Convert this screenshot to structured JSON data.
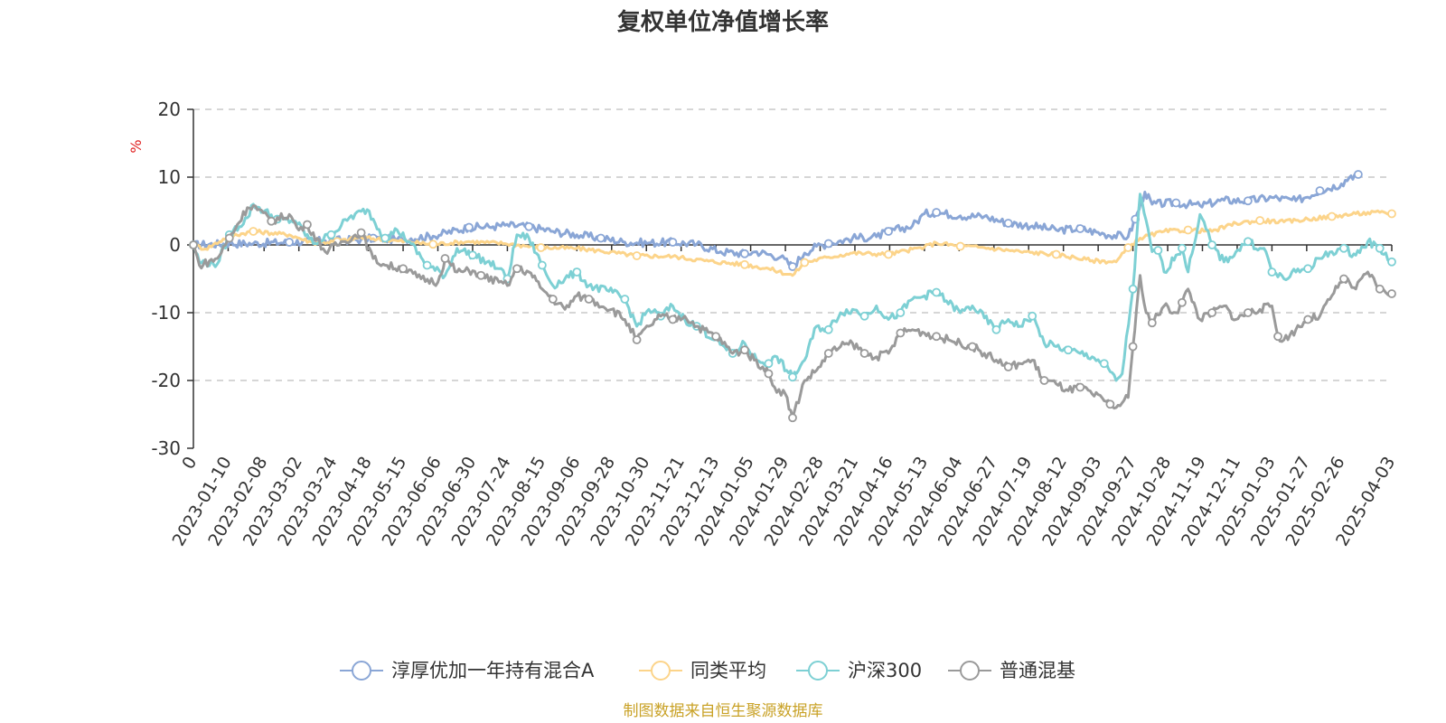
{
  "chart_data": {
    "type": "line",
    "title": "复权单位净值增长率",
    "ylabel": "%",
    "ylim": [
      -30,
      20
    ],
    "yticks": [
      20,
      10,
      0,
      -10,
      -20,
      -30
    ],
    "grid": true,
    "legend_position": "bottom",
    "x_range": [
      0,
      100
    ],
    "categories": [
      "0",
      "2023-01-10",
      "2023-02-08",
      "2023-03-02",
      "2023-03-24",
      "2023-04-18",
      "2023-05-15",
      "2023-06-06",
      "2023-06-30",
      "2023-07-24",
      "2023-08-15",
      "2023-09-06",
      "2023-09-28",
      "2023-10-30",
      "2023-11-21",
      "2023-12-13",
      "2024-01-05",
      "2024-01-29",
      "2024-02-28",
      "2024-03-21",
      "2024-04-16",
      "2024-05-13",
      "2024-06-04",
      "2024-06-27",
      "2024-07-19",
      "2024-08-12",
      "2024-09-03",
      "2024-09-27",
      "2024-10-28",
      "2024-11-19",
      "2024-12-11",
      "2025-01-03",
      "2025-01-27",
      "2025-02-26",
      "2025-04-03"
    ],
    "category_positions": [
      0,
      2.9,
      5.9,
      8.8,
      11.7,
      14.6,
      17.5,
      20.4,
      23.3,
      26.2,
      29.1,
      32.0,
      34.9,
      37.8,
      40.7,
      43.6,
      46.5,
      49.4,
      52.3,
      55.2,
      58.1,
      61.0,
      63.9,
      66.8,
      69.7,
      72.6,
      75.5,
      78.4,
      81.3,
      84.2,
      87.1,
      90.0,
      92.9,
      95.8,
      100
    ],
    "series": [
      {
        "name": "淳厚优加一年持有混合A",
        "color": "#8aa6d6",
        "x": [
          0,
          3,
          5,
          8,
          11,
          14,
          15,
          17,
          20,
          23,
          25,
          26,
          28,
          30,
          32,
          34,
          36,
          38,
          40,
          42,
          44,
          46,
          47,
          49,
          50,
          51,
          52,
          53,
          55,
          57,
          58,
          60,
          61,
          62,
          64,
          66,
          68,
          70,
          72,
          74,
          76,
          78,
          78.6,
          79.4,
          80,
          82,
          84,
          86,
          88,
          90,
          92,
          94,
          95.8,
          96.6,
          97.2
        ],
        "values": [
          0,
          0.2,
          0.2,
          0.4,
          0.6,
          0.8,
          1.0,
          0.8,
          1.3,
          2.6,
          2.7,
          2.9,
          2.7,
          2.0,
          1.5,
          1.0,
          0.4,
          0.3,
          0.4,
          0.1,
          -1.0,
          -1.3,
          -1.0,
          -1.8,
          -3.2,
          -1.2,
          -0.2,
          0.2,
          1.0,
          1.2,
          2.0,
          2.8,
          4.6,
          4.8,
          4.3,
          4.2,
          3.2,
          2.8,
          2.2,
          2.4,
          1.6,
          1.2,
          3.8,
          7.8,
          6.0,
          6.2,
          5.8,
          6.6,
          6.5,
          7.0,
          6.5,
          8.0,
          9.0,
          10.2,
          10.4
        ]
      },
      {
        "name": "同类平均",
        "color": "#fcd48a",
        "x": [
          0,
          1,
          3,
          5,
          8,
          10,
          12,
          14,
          17,
          20,
          23,
          26,
          29,
          32,
          34,
          37,
          40,
          43,
          46,
          48,
          50,
          51,
          53,
          55,
          58,
          61,
          62,
          64,
          66,
          69,
          72,
          75,
          77,
          78,
          79,
          81,
          83,
          85,
          87,
          89,
          91,
          93,
          95,
          97,
          99,
          100
        ],
        "values": [
          0,
          -0.6,
          1.3,
          2.0,
          1.5,
          0.3,
          0.5,
          1.1,
          0.6,
          0.1,
          0.5,
          0.2,
          -0.4,
          -0.5,
          -0.9,
          -1.6,
          -1.7,
          -2.4,
          -2.9,
          -3.5,
          -4.5,
          -2.6,
          -1.8,
          -1.2,
          -1.4,
          -0.3,
          0.3,
          -0.2,
          -0.4,
          -1.0,
          -1.4,
          -2.3,
          -2.5,
          -0.4,
          1.0,
          2.0,
          2.2,
          2.0,
          3.2,
          3.6,
          3.4,
          3.8,
          4.2,
          4.6,
          4.8,
          4.6
        ]
      },
      {
        "name": "沪深300",
        "color": "#7dd0d4",
        "x": [
          0,
          0.5,
          2,
          3,
          4.5,
          5,
          7,
          8.5,
          10,
          11.5,
          13,
          14.5,
          16,
          17,
          18,
          19.5,
          21,
          22,
          23.3,
          24.5,
          25.5,
          26.2,
          27,
          28,
          29.1,
          30,
          31,
          32,
          33,
          35,
          36,
          37,
          38,
          39,
          40,
          41,
          42,
          43.6,
          44.5,
          45,
          46,
          47,
          48,
          48.7,
          49.5,
          50,
          51,
          52,
          53,
          54,
          55,
          56,
          57,
          58,
          59,
          60,
          61,
          62,
          64,
          65,
          67,
          68,
          69,
          70,
          71,
          72,
          73,
          74,
          75,
          76,
          77,
          77.5,
          78.4,
          79,
          80,
          80.5,
          81,
          82,
          82.5,
          83,
          84,
          85,
          86,
          87,
          88,
          89,
          89.5,
          90,
          91,
          92,
          93,
          94,
          95,
          96,
          97,
          98,
          99,
          100
        ],
        "values": [
          0,
          -2.5,
          -2.8,
          1.5,
          4.0,
          6.0,
          3.8,
          3.5,
          0.2,
          1.5,
          4.0,
          5.2,
          1.0,
          2.2,
          0.5,
          -3.0,
          -4.5,
          -0.5,
          -1.5,
          -2.5,
          -3.5,
          -5.0,
          1.5,
          1.0,
          -3.0,
          -6.0,
          -5.0,
          -4.0,
          -6.0,
          -7.0,
          -8.0,
          -12.0,
          -9.5,
          -10.5,
          -9.0,
          -11.0,
          -12.0,
          -14.0,
          -15.5,
          -16.0,
          -14.5,
          -17.0,
          -17.5,
          -16.5,
          -18.5,
          -19.5,
          -17.0,
          -12.0,
          -12.5,
          -10.0,
          -9.5,
          -10.5,
          -9.0,
          -11.0,
          -10.0,
          -8.0,
          -7.5,
          -7.0,
          -10.0,
          -9.0,
          -12.5,
          -11.0,
          -12.0,
          -10.5,
          -14.5,
          -15.0,
          -15.5,
          -16.0,
          -16.5,
          -17.5,
          -20.0,
          -19.0,
          -6.5,
          7.5,
          -1.0,
          -0.8,
          -4.0,
          -1.5,
          -0.5,
          -4.0,
          4.5,
          0.0,
          -2.5,
          -1.0,
          0.5,
          -0.5,
          -1.0,
          -4.0,
          -5.0,
          -4.0,
          -3.5,
          -2.0,
          -1.0,
          -0.5,
          -1.5,
          0.5,
          -0.5,
          -2.5
        ]
      },
      {
        "name": "普通混基",
        "color": "#9a9a9a",
        "x": [
          0,
          0.5,
          2,
          3,
          4.5,
          5,
          6.5,
          8,
          8.8,
          9.5,
          11,
          12.5,
          14,
          15,
          16,
          17.5,
          19,
          20.4,
          21,
          22,
          23.3,
          24,
          25.5,
          26.2,
          27,
          28,
          29.1,
          30,
          31,
          32,
          33,
          34.9,
          36,
          37,
          38,
          39,
          40,
          41,
          42,
          43.6,
          44.5,
          45,
          46,
          46.8,
          47.5,
          48,
          48.5,
          49.4,
          50,
          51,
          52,
          53,
          54,
          55,
          56,
          57,
          58,
          59,
          60,
          61,
          62,
          63,
          64,
          65,
          66,
          67,
          68,
          69,
          70,
          71,
          72,
          73,
          74,
          75,
          76,
          76.5,
          77,
          78,
          78.4,
          79,
          79.5,
          80,
          81,
          82,
          82.5,
          83,
          84,
          85,
          86,
          87,
          88,
          89,
          90,
          90.5,
          91,
          92,
          93,
          94,
          95,
          96,
          97,
          98,
          99,
          100
        ],
        "values": [
          0,
          -3.0,
          -2.0,
          1.0,
          5.5,
          5.8,
          3.5,
          4.5,
          2.2,
          3.0,
          -1.0,
          0.5,
          1.8,
          -2.0,
          -3.0,
          -3.5,
          -5.0,
          -5.5,
          -2.0,
          -4.0,
          -3.8,
          -4.5,
          -5.5,
          -6.0,
          -3.5,
          -4.0,
          -6.5,
          -8.0,
          -9.5,
          -7.5,
          -8.0,
          -9.5,
          -11.0,
          -14.0,
          -12.0,
          -10.5,
          -11.0,
          -10.5,
          -12.0,
          -13.5,
          -15.0,
          -16.0,
          -15.5,
          -17.0,
          -18.0,
          -19.0,
          -21.0,
          -22.0,
          -25.5,
          -20.0,
          -18.5,
          -16.0,
          -15.0,
          -14.5,
          -16.0,
          -16.5,
          -16.0,
          -13.0,
          -12.5,
          -13.0,
          -13.5,
          -14.0,
          -14.5,
          -15.0,
          -16.0,
          -17.0,
          -18.0,
          -17.5,
          -17.0,
          -20.0,
          -20.5,
          -21.5,
          -21.0,
          -22.0,
          -23.0,
          -23.5,
          -24.0,
          -22.5,
          -15.0,
          -4.5,
          -10.0,
          -11.5,
          -9.0,
          -10.0,
          -8.5,
          -6.5,
          -11.0,
          -10.0,
          -9.0,
          -11.0,
          -10.0,
          -9.5,
          -9.0,
          -13.5,
          -14.0,
          -12.5,
          -11.0,
          -10.5,
          -7.5,
          -5.0,
          -6.5,
          -4.0,
          -6.5,
          -7.2
        ]
      }
    ],
    "legend": [
      "淳厚优加一年持有混合A",
      "同类平均",
      "沪深300",
      "普通混基"
    ]
  },
  "footer": {
    "source": "制图数据来自恒生聚源数据库"
  }
}
